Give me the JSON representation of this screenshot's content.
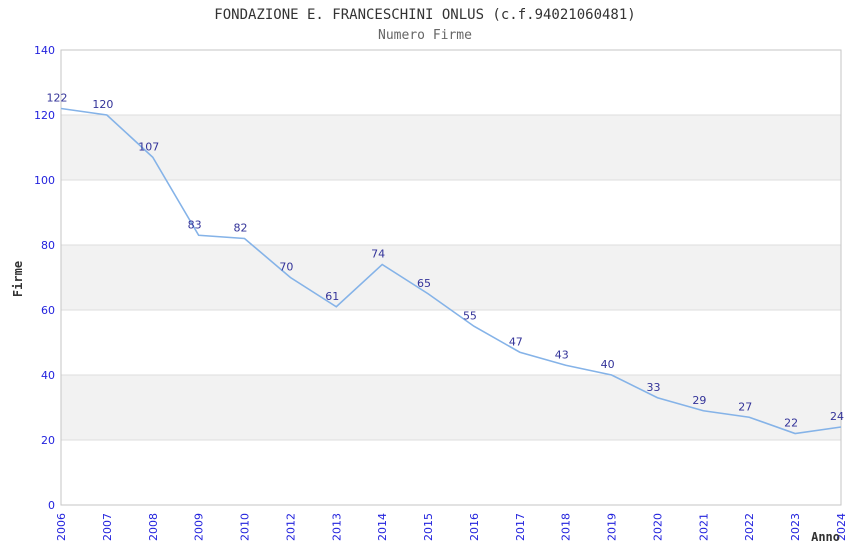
{
  "chart_data": {
    "type": "line",
    "title": "FONDAZIONE E. FRANCESCHINI ONLUS (c.f.94021060481)",
    "subtitle": "Numero Firme",
    "xlabel": "Anno",
    "ylabel": "Firme",
    "categories": [
      "2006",
      "2007",
      "2008",
      "2009",
      "2010",
      "2012",
      "2013",
      "2014",
      "2015",
      "2016",
      "2017",
      "2018",
      "2019",
      "2020",
      "2021",
      "2022",
      "2023",
      "2024"
    ],
    "values": [
      122,
      120,
      107,
      83,
      82,
      70,
      61,
      74,
      65,
      55,
      47,
      43,
      40,
      33,
      29,
      27,
      22,
      24
    ],
    "ylim": [
      0,
      140
    ],
    "ytick_step": 20,
    "yticks": [
      0,
      20,
      40,
      60,
      80,
      100,
      120,
      140
    ],
    "grid": "alternating-horizontal-bands",
    "legend_position": "none",
    "point_labels_visible": true,
    "markers": "none",
    "colors": {
      "line": "#85b3e8",
      "tick_label": "#2222dd",
      "point_label": "#333399",
      "band_fill": "#f2f2f2",
      "plot_border": "#c6c6c6",
      "gridline": "#dedede",
      "title": "#333333",
      "subtitle": "#666666",
      "axis_title": "#333333",
      "background": "#ffffff"
    }
  }
}
